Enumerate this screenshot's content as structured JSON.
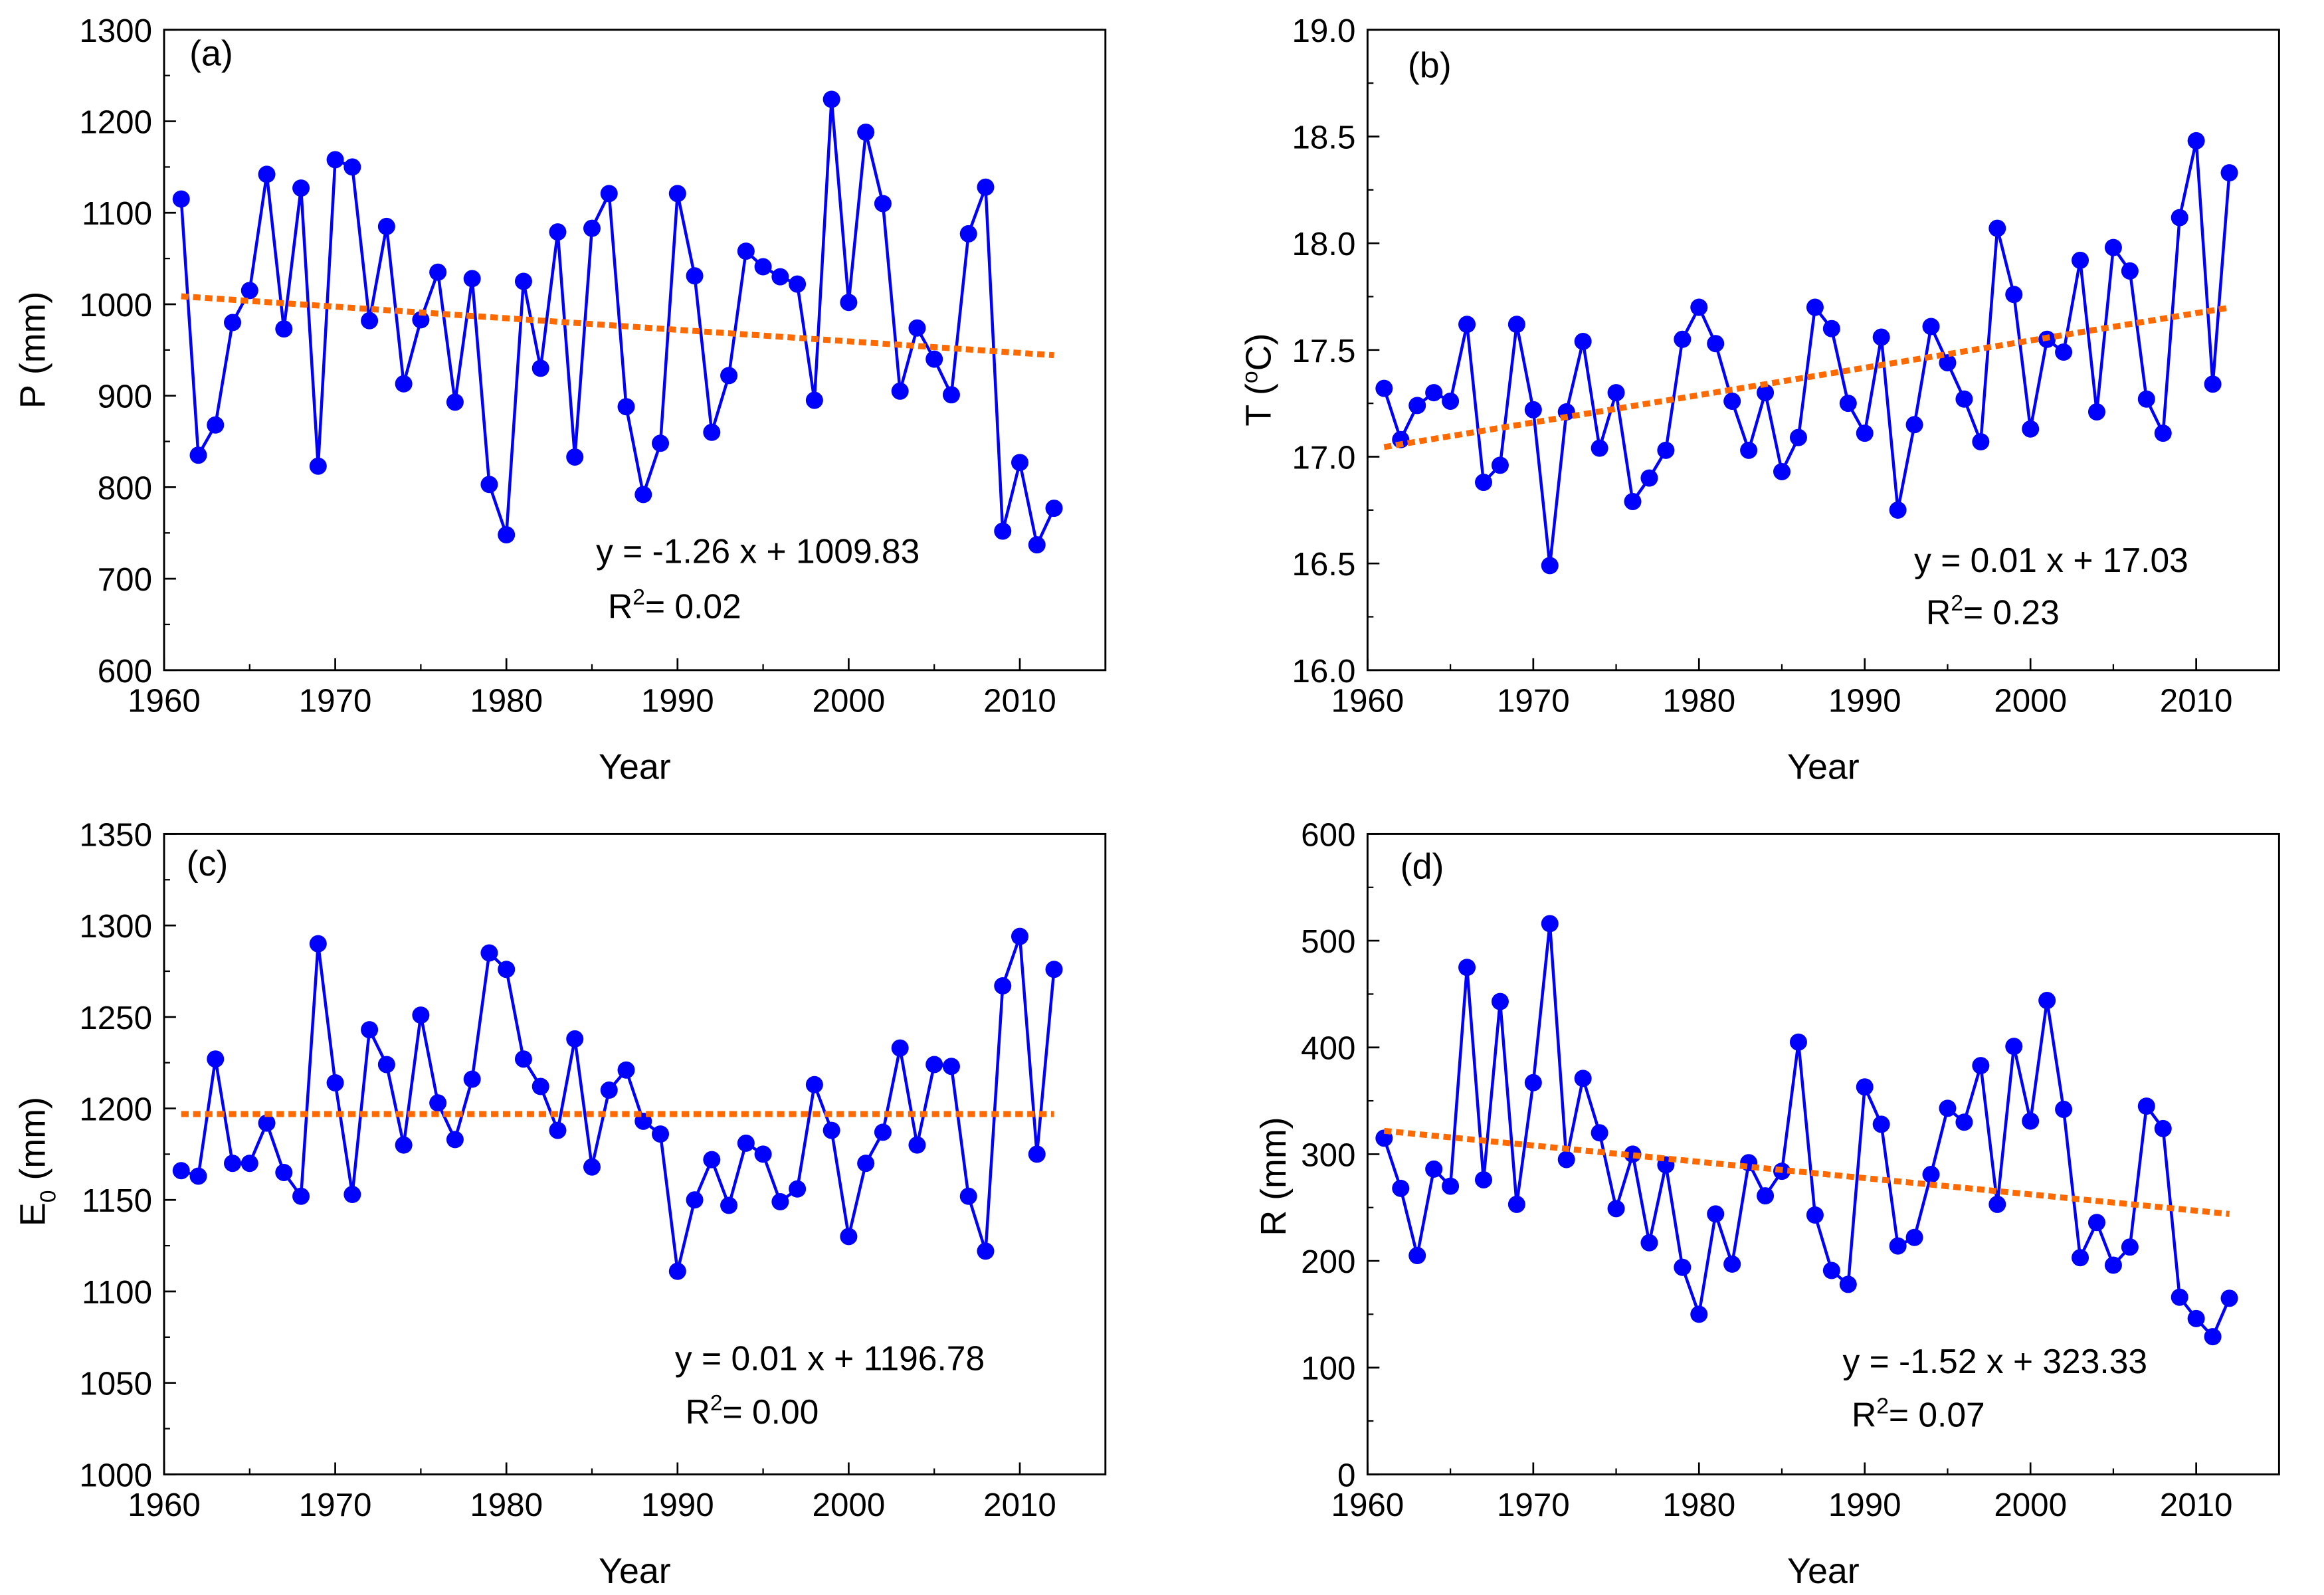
{
  "colors": {
    "series": "#0000ff",
    "trend": "#ff6a00",
    "axis": "#000000"
  },
  "chart_data": [
    {
      "type": "line",
      "panel": "(a)",
      "xlabel": "Year",
      "ylabel": "P (mm)",
      "ylabel_main": "P",
      "ylabel_sub": "",
      "ylabel_sup": "",
      "ylabel_unit": " (mm)",
      "xlim": [
        1960,
        2015
      ],
      "ylim": [
        600,
        1300
      ],
      "xticks": [
        1960,
        1970,
        1980,
        1990,
        2000,
        2010
      ],
      "yticks": [
        600,
        700,
        800,
        900,
        1000,
        1100,
        1200,
        1300
      ],
      "equation": "y = -1.26 x + 1009.83",
      "r2": "= 0.02",
      "x": [
        1961,
        1962,
        1963,
        1964,
        1965,
        1966,
        1967,
        1968,
        1969,
        1970,
        1971,
        1972,
        1973,
        1974,
        1975,
        1976,
        1977,
        1978,
        1979,
        1980,
        1981,
        1982,
        1983,
        1984,
        1985,
        1986,
        1987,
        1988,
        1989,
        1990,
        1991,
        1992,
        1993,
        1994,
        1995,
        1996,
        1997,
        1998,
        1999,
        2000,
        2001,
        2002,
        2003,
        2004,
        2005,
        2006,
        2007,
        2008,
        2009,
        2010,
        2011,
        2012
      ],
      "y": [
        1115,
        835,
        868,
        980,
        1015,
        1142,
        973,
        1127,
        823,
        1158,
        1150,
        982,
        1085,
        913,
        983,
        1035,
        893,
        1028,
        803,
        748,
        1025,
        930,
        1079,
        833,
        1083,
        1121,
        888,
        792,
        848,
        1121,
        1031,
        860,
        922,
        1058,
        1041,
        1030,
        1022,
        895,
        1224,
        1002,
        1188,
        1110,
        905,
        974,
        940,
        901,
        1077,
        1128,
        752,
        827,
        737,
        777
      ]
    },
    {
      "type": "line",
      "panel": "(b)",
      "xlabel": "Year",
      "ylabel": "T (°C)",
      "ylabel_main": "T (",
      "ylabel_sub": "",
      "ylabel_sup": "o",
      "ylabel_unit": "C)",
      "xlim": [
        1960,
        2015
      ],
      "ylim": [
        16.0,
        19.0
      ],
      "xticks": [
        1960,
        1970,
        1980,
        1990,
        2000,
        2010
      ],
      "yticks": [
        "16.0",
        "16.5",
        "17.0",
        "17.5",
        "18.0",
        "18.5",
        "19.0"
      ],
      "equation": "y = 0.01 x + 17.03",
      "r2": "= 0.23",
      "x": [
        1961,
        1962,
        1963,
        1964,
        1965,
        1966,
        1967,
        1968,
        1969,
        1970,
        1971,
        1972,
        1973,
        1974,
        1975,
        1976,
        1977,
        1978,
        1979,
        1980,
        1981,
        1982,
        1983,
        1984,
        1985,
        1986,
        1987,
        1988,
        1989,
        1990,
        1991,
        1992,
        1993,
        1994,
        1995,
        1996,
        1997,
        1998,
        1999,
        2000,
        2001,
        2002,
        2003,
        2004,
        2005,
        2006,
        2007,
        2008,
        2009,
        2010,
        2011,
        2012
      ],
      "y": [
        17.32,
        17.08,
        17.24,
        17.3,
        17.26,
        17.62,
        16.88,
        16.96,
        17.62,
        17.22,
        16.49,
        17.21,
        17.54,
        17.04,
        17.3,
        16.79,
        16.9,
        17.03,
        17.55,
        17.7,
        17.53,
        17.26,
        17.03,
        17.3,
        16.93,
        17.09,
        17.7,
        17.6,
        17.25,
        17.11,
        17.56,
        16.75,
        17.15,
        17.61,
        17.44,
        17.27,
        17.07,
        18.07,
        17.76,
        17.13,
        17.55,
        17.49,
        17.92,
        17.21,
        17.98,
        17.87,
        17.27,
        17.11,
        18.12,
        18.48,
        17.34,
        18.33
      ]
    },
    {
      "type": "line",
      "panel": "(c)",
      "xlabel": "Year",
      "ylabel": "E0 (mm)",
      "ylabel_main": "E",
      "ylabel_sub": "0",
      "ylabel_sup": "",
      "ylabel_unit": " (mm)",
      "xlim": [
        1960,
        2015
      ],
      "ylim": [
        1000,
        1350
      ],
      "xticks": [
        1960,
        1970,
        1980,
        1990,
        2000,
        2010
      ],
      "yticks": [
        1000,
        1050,
        1100,
        1150,
        1200,
        1250,
        1300,
        1350
      ],
      "equation": "y = 0.01 x + 1196.78",
      "r2": "= 0.00",
      "x": [
        1961,
        1962,
        1963,
        1964,
        1965,
        1966,
        1967,
        1968,
        1969,
        1970,
        1971,
        1972,
        1973,
        1974,
        1975,
        1976,
        1977,
        1978,
        1979,
        1980,
        1981,
        1982,
        1983,
        1984,
        1985,
        1986,
        1987,
        1988,
        1989,
        1990,
        1991,
        1992,
        1993,
        1994,
        1995,
        1996,
        1997,
        1998,
        1999,
        2000,
        2001,
        2002,
        2003,
        2004,
        2005,
        2006,
        2007,
        2008,
        2009,
        2010,
        2011,
        2012
      ],
      "y": [
        1166,
        1163,
        1227,
        1170,
        1170,
        1192,
        1165,
        1152,
        1290,
        1214,
        1153,
        1243,
        1224,
        1180,
        1251,
        1203,
        1183,
        1216,
        1285,
        1276,
        1227,
        1212,
        1188,
        1238,
        1168,
        1210,
        1221,
        1193,
        1186,
        1111,
        1150,
        1172,
        1147,
        1181,
        1175,
        1149,
        1156,
        1213,
        1188,
        1130,
        1170,
        1187,
        1233,
        1180,
        1224,
        1223,
        1152,
        1122,
        1267,
        1294,
        1175,
        1276
      ]
    },
    {
      "type": "line",
      "panel": "(d)",
      "xlabel": "Year",
      "ylabel": "R (mm)",
      "ylabel_main": "R",
      "ylabel_sub": "",
      "ylabel_sup": "",
      "ylabel_unit": " (mm)",
      "xlim": [
        1960,
        2015
      ],
      "ylim": [
        0,
        600
      ],
      "xticks": [
        1960,
        1970,
        1980,
        1990,
        2000,
        2010
      ],
      "yticks": [
        0,
        100,
        200,
        300,
        400,
        500,
        600
      ],
      "equation": "y = -1.52 x + 323.33",
      "r2": "= 0.07",
      "x": [
        1961,
        1962,
        1963,
        1964,
        1965,
        1966,
        1967,
        1968,
        1969,
        1970,
        1971,
        1972,
        1973,
        1974,
        1975,
        1976,
        1977,
        1978,
        1979,
        1980,
        1981,
        1982,
        1983,
        1984,
        1985,
        1986,
        1987,
        1988,
        1989,
        1990,
        1991,
        1992,
        1993,
        1994,
        1995,
        1996,
        1997,
        1998,
        1999,
        2000,
        2001,
        2002,
        2003,
        2004,
        2005,
        2006,
        2007,
        2008,
        2009,
        2010,
        2011,
        2012
      ],
      "y": [
        315,
        268,
        205,
        286,
        270,
        475,
        276,
        443,
        253,
        367,
        516,
        295,
        371,
        320,
        249,
        300,
        217,
        290,
        194,
        150,
        244,
        197,
        292,
        261,
        284,
        405,
        243,
        191,
        178,
        363,
        328,
        214,
        222,
        281,
        343,
        330,
        383,
        253,
        401,
        331,
        444,
        342,
        203,
        236,
        196,
        213,
        345,
        324,
        166,
        146,
        129,
        165
      ]
    }
  ]
}
